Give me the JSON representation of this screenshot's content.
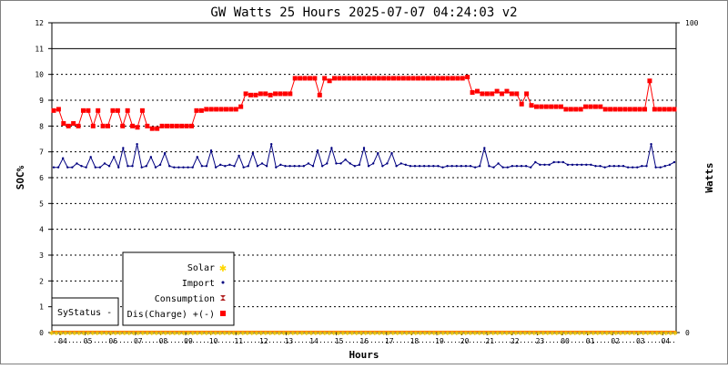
{
  "chart_data": {
    "type": "line",
    "title": "GW Watts 25 Hours 2025-07-07 04:24:03 v2",
    "xlabel": "Hours",
    "ylabel_left": "SOC%",
    "ylabel_right": "Watts",
    "y_left_ticks": [
      "0",
      "1",
      "2",
      "3",
      "4",
      "5",
      "6",
      "7",
      "8",
      "9",
      "10",
      "11",
      "12"
    ],
    "y_right_ticks": [
      "0",
      "100"
    ],
    "ylim_left": [
      0,
      12
    ],
    "hour_ticks": [
      "04",
      "05",
      "06",
      "07",
      "08",
      "09",
      "10",
      "11",
      "12",
      "13",
      "14",
      "15",
      "16",
      "17",
      "18",
      "19",
      "20",
      "21",
      "22",
      "23",
      "00",
      "01",
      "02",
      "03",
      "04"
    ],
    "grid": true,
    "reference_line_y": 11,
    "legend": {
      "placement": "bottom-left",
      "entries": [
        {
          "label": "Solar",
          "color": "#ffd700",
          "marker": "asterisk"
        },
        {
          "label": "Import",
          "color": "#000080",
          "marker": "dot"
        },
        {
          "label": "Consumption",
          "color": "#b22222",
          "marker": "hourglass"
        },
        {
          "label": "Dis(Charge) +(-)",
          "color": "#ff0000",
          "marker": "square"
        }
      ]
    },
    "status_box": {
      "label": "SyStatus",
      "symbol": "-"
    },
    "series": [
      {
        "name": "Dis(Charge) +(-)",
        "color": "#ff0000",
        "values": [
          8.6,
          8.65,
          8.1,
          8.0,
          8.1,
          8.0,
          8.6,
          8.6,
          8.0,
          8.6,
          8.0,
          8.0,
          8.6,
          8.6,
          8.0,
          8.6,
          8.0,
          7.95,
          8.6,
          8.0,
          7.9,
          7.9,
          8.0,
          8.0,
          8.0,
          8.0,
          8.0,
          8.0,
          8.0,
          8.6,
          8.6,
          8.65,
          8.65,
          8.65,
          8.65,
          8.65,
          8.65,
          8.65,
          8.75,
          9.25,
          9.2,
          9.2,
          9.25,
          9.25,
          9.2,
          9.25,
          9.25,
          9.25,
          9.25,
          9.85,
          9.85,
          9.85,
          9.85,
          9.85,
          9.2,
          9.85,
          9.75,
          9.85,
          9.85,
          9.85,
          9.85,
          9.85,
          9.85,
          9.85,
          9.85,
          9.85,
          9.85,
          9.85,
          9.85,
          9.85,
          9.85,
          9.85,
          9.85,
          9.85,
          9.85,
          9.85,
          9.85,
          9.85,
          9.85,
          9.85,
          9.85,
          9.85,
          9.85,
          9.85,
          9.9,
          9.3,
          9.35,
          9.25,
          9.25,
          9.25,
          9.35,
          9.25,
          9.35,
          9.25,
          9.25,
          8.85,
          9.25,
          8.8,
          8.75,
          8.75,
          8.75,
          8.75,
          8.75,
          8.75,
          8.65,
          8.65,
          8.65,
          8.65,
          8.75,
          8.75,
          8.75,
          8.75,
          8.65,
          8.65,
          8.65,
          8.65,
          8.65,
          8.65,
          8.65,
          8.65,
          8.65,
          9.75,
          8.65,
          8.65,
          8.65,
          8.65,
          8.65
        ]
      },
      {
        "name": "Import",
        "color": "#000080",
        "values": [
          6.4,
          6.4,
          6.75,
          6.4,
          6.4,
          6.55,
          6.45,
          6.4,
          6.8,
          6.4,
          6.4,
          6.55,
          6.45,
          6.8,
          6.4,
          7.15,
          6.45,
          6.45,
          7.3,
          6.4,
          6.45,
          6.8,
          6.4,
          6.5,
          6.95,
          6.45,
          6.4,
          6.4,
          6.4,
          6.4,
          6.4,
          6.8,
          6.45,
          6.45,
          7.05,
          6.4,
          6.5,
          6.45,
          6.5,
          6.45,
          6.85,
          6.4,
          6.45,
          6.95,
          6.45,
          6.55,
          6.45,
          7.3,
          6.4,
          6.5,
          6.45,
          6.45,
          6.45,
          6.45,
          6.45,
          6.55,
          6.45,
          7.05,
          6.45,
          6.55,
          7.15,
          6.55,
          6.55,
          6.7,
          6.55,
          6.45,
          6.5,
          7.15,
          6.45,
          6.55,
          6.95,
          6.45,
          6.55,
          6.95,
          6.45,
          6.55,
          6.5,
          6.45,
          6.45,
          6.45,
          6.45,
          6.45,
          6.45,
          6.45,
          6.4,
          6.45,
          6.45,
          6.45,
          6.45,
          6.45,
          6.45,
          6.4,
          6.45,
          7.15,
          6.45,
          6.4,
          6.55,
          6.4,
          6.4,
          6.45,
          6.45,
          6.45,
          6.45,
          6.4,
          6.6,
          6.5,
          6.5,
          6.5,
          6.6,
          6.6,
          6.6,
          6.5,
          6.5,
          6.5,
          6.5,
          6.5,
          6.5,
          6.45,
          6.45,
          6.4,
          6.45,
          6.45,
          6.45,
          6.45,
          6.4,
          6.4,
          6.4,
          6.45,
          6.45,
          7.3,
          6.4,
          6.4,
          6.45,
          6.5,
          6.6
        ]
      },
      {
        "name": "Consumption",
        "color": "#b22222",
        "values": "constant 0 across all samples"
      },
      {
        "name": "Solar",
        "color": "#ffd700",
        "values": "constant 0 across all samples"
      }
    ]
  }
}
